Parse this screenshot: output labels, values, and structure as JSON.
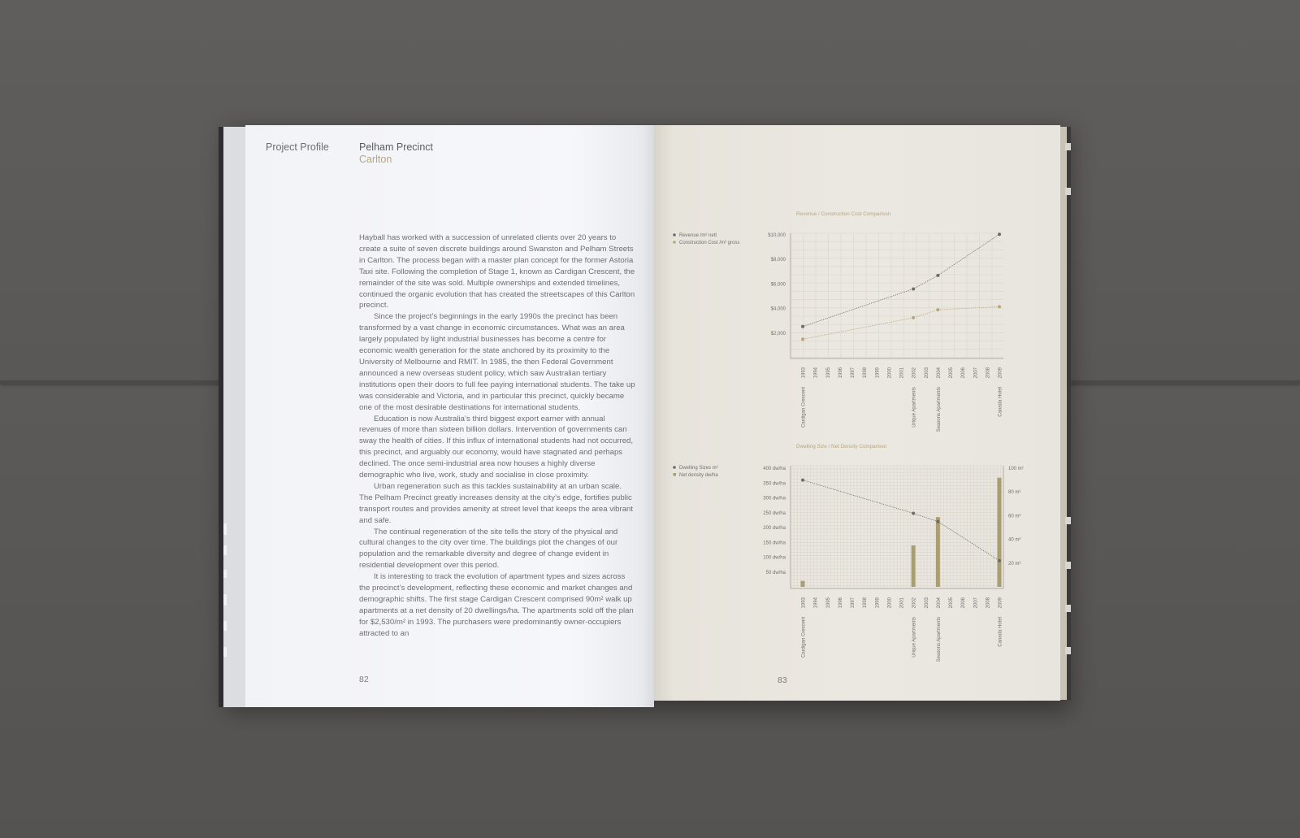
{
  "left_page": {
    "section_label": "Project Profile",
    "title": "Pelham Precinct",
    "subtitle": "Carlton",
    "paragraphs": [
      "Hayball has worked with a succession of unrelated clients over 20 years to create a suite of seven discrete buildings around Swanston and Pelham Streets in Carlton. The process began with a master plan concept for the former Astoria Taxi site. Following the completion of Stage 1, known as Cardigan Crescent, the remainder of the site was sold. Multiple ownerships and extended timelines, continued the organic evolution that has created the streetscapes of this Carlton precinct.",
      "Since the project’s beginnings in the early 1990s the precinct has been transformed by a vast change in economic circumstances. What was an area largely populated by light industrial businesses has become a centre for economic wealth generation for the state anchored by its proximity to the University of Melbourne and RMIT. In 1985, the then Federal Government announced a new overseas student policy, which saw Australian tertiary institutions open their doors to full fee paying international students. The take up was considerable and Victoria, and in particular this precinct, quickly became one of the most desirable destinations for international students.",
      "Education is now Australia’s third biggest export earner with annual revenues of more than sixteen billion dollars. Intervention of governments can sway the health of cities. If this influx of international students had not occurred, this precinct, and arguably our economy, would have stagnated and perhaps declined. The once semi-industrial area now houses a highly diverse demographic who live, work, study and socialise in close proximity.",
      "Urban regeneration such as this tackles sustainability at an urban scale. The Pelham Precinct greatly increases density at the city’s edge, fortifies public transport routes and provides amenity at street level that keeps the area vibrant and safe.",
      "The continual regeneration of the site tells the story of the physical and cultural changes to the city over time. The buildings plot the changes of our population and the remarkable diversity and degree of change evident in residential development over this period.",
      "It is interesting to track the evolution of apartment types and sizes across the precinct’s development, reflecting these economic and market changes and demographic shifts. The first stage Cardigan Crescent comprised 90m² walk up apartments at a net density of 20 dwellings/ha. The apartments sold off the plan for $2,530/m² in 1993. The purchasers were predominantly owner-occupiers attracted to an"
    ],
    "page_number": "82"
  },
  "right_page": {
    "page_number": "83"
  },
  "colors": {
    "accent_gold": "#b7a67d",
    "series_dark": "#6e6c68",
    "bar_olive": "#a99d72",
    "grid": "#d9d6cc"
  },
  "chart_data": [
    {
      "type": "line",
      "title": "Revenue / Construction Cost Comparison",
      "x": [
        "1993",
        "1994",
        "1995",
        "1996",
        "1997",
        "1998",
        "1999",
        "2000",
        "2001",
        "2002",
        "2003",
        "2004",
        "2005",
        "2006",
        "2007",
        "2008",
        "2009"
      ],
      "x_project_labels": {
        "1993": "Cardigan Crescent",
        "2002": "Urique Apartments",
        "2004": "Seasons Apartments",
        "2009": "Canada Hotel"
      },
      "yticks": [
        "$10,000",
        "$8,000",
        "$6,000",
        "$4,000",
        "$2,000"
      ],
      "ylim": [
        0,
        10000
      ],
      "grid": true,
      "legend_position": "left",
      "series": [
        {
          "name": "Revenue /m² nett",
          "color": "#6e6c68",
          "points": [
            {
              "x": "1993",
              "y": 2530
            },
            {
              "x": "2002",
              "y": 5600
            },
            {
              "x": "2004",
              "y": 6700
            },
            {
              "x": "2009",
              "y": 10050
            }
          ]
        },
        {
          "name": "Construction Cost /m² gross",
          "color": "#b7a67d",
          "points": [
            {
              "x": "1993",
              "y": 1500
            },
            {
              "x": "2002",
              "y": 3250
            },
            {
              "x": "2004",
              "y": 3900
            },
            {
              "x": "2009",
              "y": 4150
            }
          ]
        }
      ]
    },
    {
      "type": "bar",
      "title": "Dwelling Size / Net Density Comparison",
      "x": [
        "1993",
        "1994",
        "1995",
        "1996",
        "1997",
        "1998",
        "1999",
        "2000",
        "2001",
        "2002",
        "2003",
        "2004",
        "2005",
        "2006",
        "2007",
        "2008",
        "2009"
      ],
      "x_project_labels": {
        "1993": "Cardigan Crescent",
        "2002": "Urique Apartments",
        "2004": "Seasons Apartments",
        "2009": "Canada Hotel"
      },
      "yticks_left": [
        "400 dw/ha",
        "350 dw/ha",
        "300 dw/ha",
        "250 dw/ha",
        "200 dw/ha",
        "150 dw/ha",
        "100 dw/ha",
        "50 dw/ha"
      ],
      "yticks_right": [
        "100 m²",
        "80 m²",
        "60 m²",
        "40 m²",
        "20 m²"
      ],
      "ylim_left": [
        0,
        400
      ],
      "ylim_right": [
        0,
        100
      ],
      "grid": true,
      "legend_position": "left",
      "series": [
        {
          "name": "Dwelling Sizes m²",
          "kind": "line",
          "axis": "right",
          "color": "#6e6c68",
          "points": [
            {
              "x": "1993",
              "y": 90
            },
            {
              "x": "2002",
              "y": 62
            },
            {
              "x": "2004",
              "y": 55
            },
            {
              "x": "2009",
              "y": 22
            }
          ]
        },
        {
          "name": "Net density dw/ha",
          "kind": "bar",
          "axis": "left",
          "color": "#a99d72",
          "points": [
            {
              "x": "1993",
              "y": 20
            },
            {
              "x": "2002",
              "y": 140
            },
            {
              "x": "2004",
              "y": 235
            },
            {
              "x": "2009",
              "y": 368
            }
          ]
        }
      ]
    }
  ]
}
